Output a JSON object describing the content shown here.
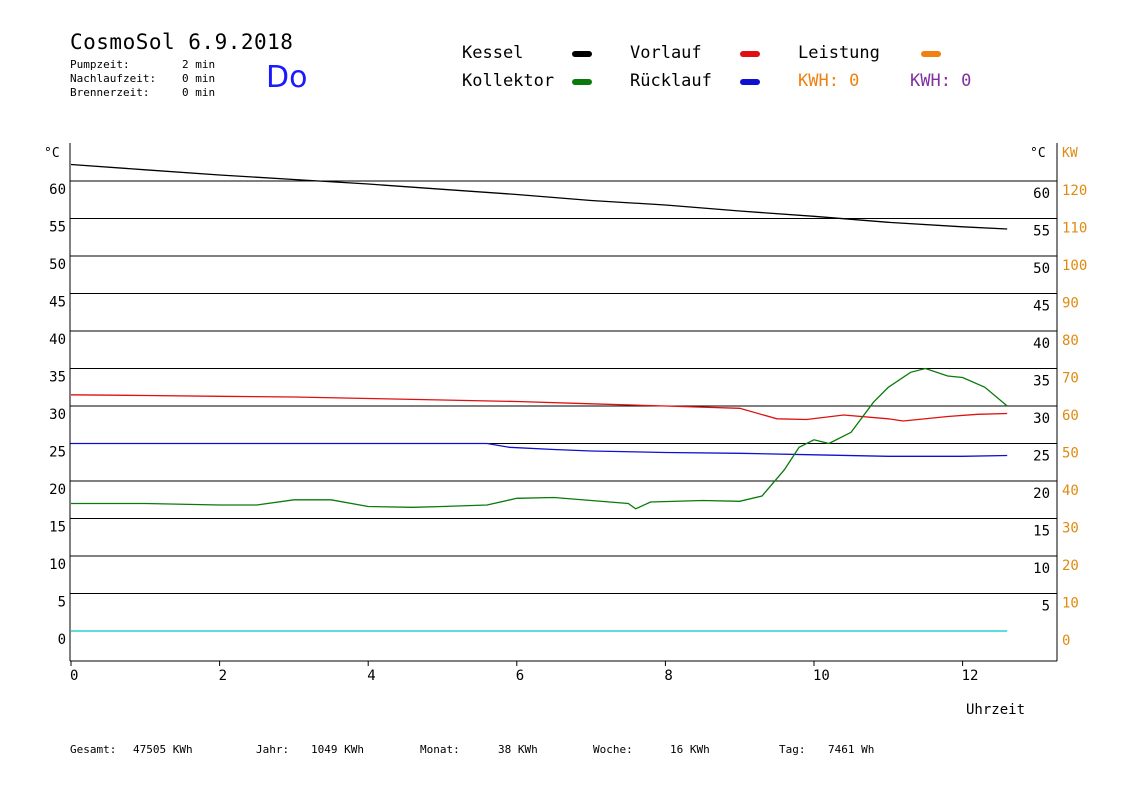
{
  "header": {
    "title": "CosmoSol 6.9.2018",
    "day": "Do",
    "stats": [
      {
        "label": "Pumpzeit:",
        "value": "2 min"
      },
      {
        "label": "Nachlaufzeit:",
        "value": "0 min"
      },
      {
        "label": "Brennerzeit:",
        "value": "0 min"
      }
    ]
  },
  "legend": {
    "kessel": "Kessel",
    "vorlauf": "Vorlauf",
    "leistung": "Leistung",
    "kollektor": "Kollektor",
    "ruecklauf": "Rücklauf",
    "kwh1": "KWH: 0",
    "kwh2": "KWH: 0"
  },
  "colors": {
    "kessel": "#000000",
    "vorlauf": "#e01010",
    "ruecklauf": "#1010d0",
    "kollektor": "#0a7a0a",
    "leistung": "#f08010",
    "kwh2": "#8030a0",
    "cyan": "#00c8c8"
  },
  "axes": {
    "unit_left": "°C",
    "unit_right": "°C",
    "unit_kw": "KW",
    "xlabel": "Uhrzeit"
  },
  "footer": [
    {
      "label": "Gesamt:",
      "value": "47505 KWh"
    },
    {
      "label": "Jahr:",
      "value": "1049 KWh"
    },
    {
      "label": "Monat:",
      "value": "38 KWh"
    },
    {
      "label": "Woche:",
      "value": "16 KWh"
    },
    {
      "label": "Tag:",
      "value": "7461 Wh"
    }
  ],
  "chart_data": {
    "type": "line",
    "xlabel": "Uhrzeit",
    "ylabel": "°C",
    "y2label": "KW",
    "xlim": [
      0,
      13
    ],
    "ylim": [
      -4,
      65
    ],
    "xticks": [
      0,
      2,
      4,
      6,
      8,
      10,
      12
    ],
    "yticks": [
      0,
      5,
      10,
      15,
      20,
      25,
      30,
      35,
      40,
      45,
      50,
      55,
      60
    ],
    "y2ticks": [
      0,
      10,
      20,
      30,
      40,
      50,
      60,
      70,
      80,
      90,
      100,
      110,
      120
    ],
    "grid": true,
    "series": [
      {
        "name": "Kessel",
        "color": "#000000",
        "x": [
          0,
          1,
          2,
          3,
          4,
          5,
          6,
          7,
          8,
          9,
          10,
          11,
          12,
          12.6
        ],
        "y": [
          62.2,
          61.5,
          60.8,
          60.2,
          59.6,
          58.9,
          58.2,
          57.4,
          56.8,
          56.0,
          55.3,
          54.5,
          53.9,
          53.6
        ]
      },
      {
        "name": "Vorlauf",
        "color": "#e01010",
        "x": [
          0,
          1,
          2,
          3,
          4,
          5,
          6,
          7,
          8,
          9,
          9.5,
          9.9,
          10.4,
          11,
          11.2,
          11.8,
          12.2,
          12.6
        ],
        "y": [
          31.5,
          31.4,
          31.3,
          31.2,
          31.0,
          30.8,
          30.6,
          30.3,
          30.0,
          29.7,
          28.3,
          28.2,
          28.8,
          28.3,
          28.0,
          28.6,
          28.9,
          29.0
        ]
      },
      {
        "name": "Rücklauf",
        "color": "#1010d0",
        "x": [
          0,
          1,
          2,
          3,
          4,
          5,
          5.6,
          5.9,
          6.5,
          7,
          8,
          9,
          10,
          11,
          12,
          12.6
        ],
        "y": [
          25.0,
          25.0,
          25.0,
          25.0,
          25.0,
          25.0,
          25.0,
          24.5,
          24.2,
          24.0,
          23.8,
          23.7,
          23.5,
          23.3,
          23.3,
          23.4
        ]
      },
      {
        "name": "Kollektor",
        "color": "#0a7a0a",
        "x": [
          0,
          1,
          2,
          2.5,
          3,
          3.5,
          4,
          4.6,
          5,
          5.6,
          6,
          6.5,
          7,
          7.5,
          7.6,
          7.8,
          8.5,
          9,
          9.3,
          9.6,
          9.8,
          10,
          10.2,
          10.5,
          10.8,
          11,
          11.3,
          11.5,
          11.8,
          12,
          12.3,
          12.6
        ],
        "y": [
          17.0,
          17.0,
          16.8,
          16.8,
          17.5,
          17.5,
          16.6,
          16.5,
          16.6,
          16.8,
          17.7,
          17.8,
          17.4,
          17.0,
          16.3,
          17.2,
          17.4,
          17.3,
          18.0,
          21.5,
          24.5,
          25.5,
          25.0,
          26.5,
          30.5,
          32.5,
          34.5,
          35.0,
          34.0,
          33.8,
          32.5,
          30.0
        ]
      },
      {
        "name": "Leistung",
        "color": "#00c8c8",
        "x": [
          0,
          12.6
        ],
        "y": [
          0,
          0
        ]
      }
    ]
  }
}
